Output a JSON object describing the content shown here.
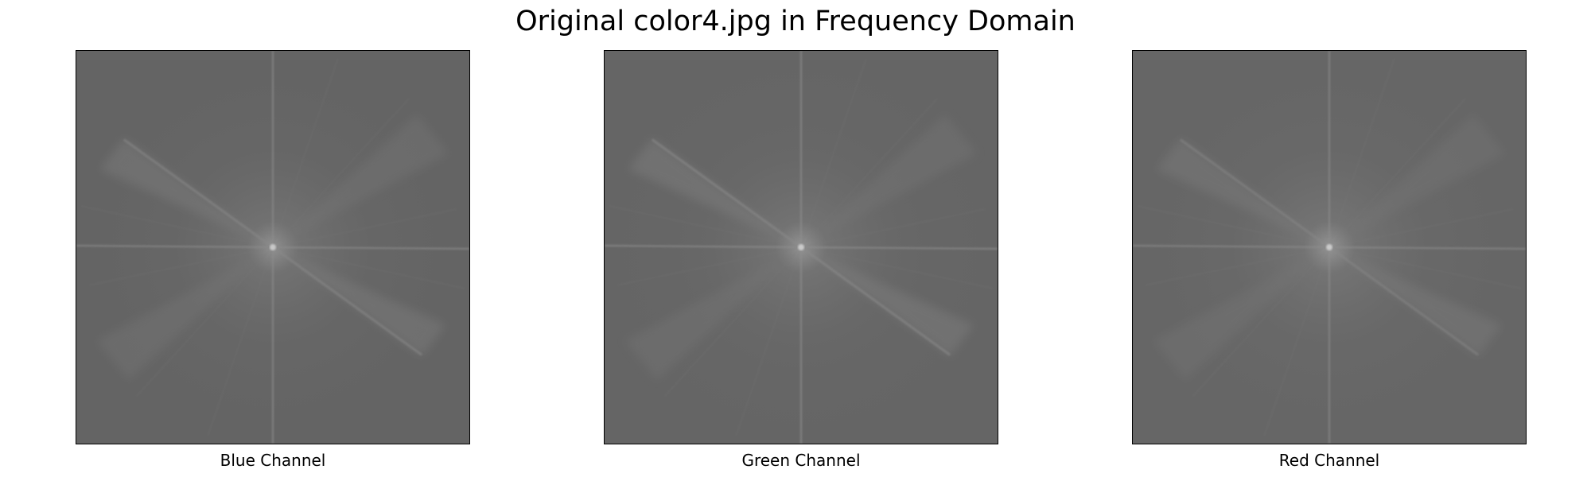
{
  "figure": {
    "title": "Original color4.jpg in Frequency Domain"
  },
  "panels": [
    {
      "label": "Blue Channel",
      "background_color": "#646464"
    },
    {
      "label": "Green Channel",
      "background_color": "#656565"
    },
    {
      "label": "Red Channel",
      "background_color": "#666666"
    }
  ]
}
